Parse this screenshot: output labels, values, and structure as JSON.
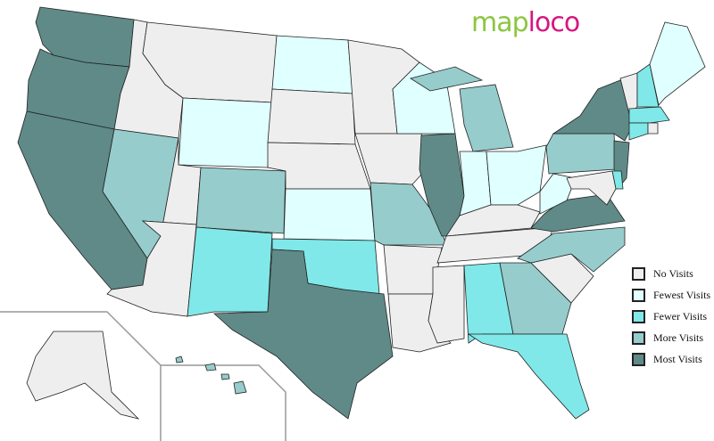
{
  "logo": {
    "part1": "map",
    "part2": "loco"
  },
  "colors": {
    "no": "#eeeeee",
    "fewest": "#e0ffff",
    "fewer": "#80e8e8",
    "more": "#96cccc",
    "most": "#5f8a88"
  },
  "legend": [
    {
      "key": "no",
      "label": "No Visits"
    },
    {
      "key": "fewest",
      "label": "Fewest Visits"
    },
    {
      "key": "fewer",
      "label": "Fewer Visits"
    },
    {
      "key": "more",
      "label": "More Visits"
    },
    {
      "key": "most",
      "label": "Most Visits"
    }
  ],
  "states": {
    "WA": "most",
    "OR": "most",
    "CA": "most",
    "ID": "no",
    "NV": "more",
    "MT": "no",
    "WY": "fewest",
    "UT": "no",
    "AZ": "no",
    "CO": "more",
    "NM": "fewer",
    "ND": "fewest",
    "SD": "no",
    "NE": "no",
    "KS": "fewest",
    "OK": "fewer",
    "TX": "most",
    "MN": "no",
    "IA": "no",
    "MO": "more",
    "AR": "no",
    "LA": "no",
    "WI": "fewest",
    "IL": "most",
    "MI": "more",
    "IN": "fewest",
    "OH": "fewest",
    "KY": "no",
    "TN": "no",
    "MS": "no",
    "AL": "fewer",
    "GA": "more",
    "FL": "fewer",
    "SC": "no",
    "NC": "more",
    "VA": "most",
    "WV": "fewest",
    "PA": "more",
    "NY": "most",
    "NJ": "most",
    "DE": "fewer",
    "MD": "no",
    "VT": "no",
    "NH": "fewer",
    "ME": "fewest",
    "MA": "fewer",
    "CT": "fewer",
    "RI": "no",
    "AK": "no",
    "HI": "more"
  }
}
